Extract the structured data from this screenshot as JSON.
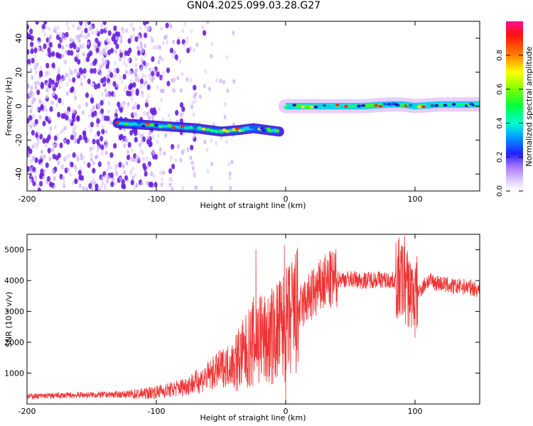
{
  "title": "GN04.2025.099.03.28.G27",
  "chart_data": [
    {
      "type": "heatmap",
      "xlabel": "Height of straight line (km)",
      "ylabel": "Frequency (Hz)",
      "xlim": [
        -200,
        150
      ],
      "ylim": [
        -50,
        50
      ],
      "xticks": [
        -200,
        -100,
        0,
        100
      ],
      "yticks": [
        -40,
        -20,
        0,
        20,
        40
      ],
      "colorbar": {
        "label": "Normalized spectral amplitude",
        "range": [
          0,
          1
        ],
        "ticks": [
          "0.0",
          "0.2",
          "0.4",
          "0.6",
          "0.8"
        ]
      },
      "ridges": [
        {
          "x": [
            -130,
            -110,
            -90,
            -70,
            -50,
            -35,
            -25,
            -15,
            -5
          ],
          "y": [
            -10,
            -11,
            -12,
            -13,
            -15,
            -14,
            -13,
            -14,
            -15
          ]
        },
        {
          "x": [
            0,
            20,
            40,
            60,
            80,
            90,
            100,
            120,
            140,
            150
          ],
          "y": [
            0,
            0,
            0,
            0,
            1,
            1,
            0,
            1,
            1,
            1
          ]
        }
      ],
      "noise_region_x": [
        -200,
        -70
      ]
    },
    {
      "type": "line",
      "xlabel": "Height of straight line (km)",
      "ylabel": "SNR (10 * v/v)",
      "xlim": [
        -200,
        150
      ],
      "ylim": [
        0,
        5500
      ],
      "xticks": [
        -200,
        -100,
        0,
        100
      ],
      "yticks": [
        1000,
        2000,
        3000,
        4000,
        5000
      ],
      "color": "#ee3333",
      "series": [
        {
          "x": [
            -200,
            -180,
            -160,
            -140,
            -120,
            -110,
            -100,
            -90,
            -80,
            -70,
            -60,
            -50,
            -40,
            -35,
            -30,
            -25,
            -20,
            -15,
            -10,
            -5,
            0,
            5,
            10,
            15,
            20,
            25,
            30,
            35,
            40,
            50,
            60,
            70,
            80,
            90,
            95,
            100,
            110,
            120,
            130,
            140,
            150
          ],
          "values": [
            250,
            270,
            290,
            300,
            320,
            330,
            400,
            450,
            550,
            700,
            900,
            1150,
            1350,
            1500,
            1700,
            2000,
            2200,
            2000,
            2200,
            2400,
            2500,
            2800,
            3000,
            3300,
            3500,
            3700,
            3900,
            4000,
            4050,
            4050,
            4000,
            4050,
            4000,
            4000,
            3700,
            3500,
            4000,
            3900,
            3800,
            3800,
            3700
          ],
          "spikes": [
            {
              "x": -23,
              "value": 5000
            },
            {
              "x": -1,
              "value": 5150
            },
            {
              "x": 0,
              "value": 50
            },
            {
              "x": 92,
              "value": 5450
            },
            {
              "x": 100,
              "value": 2150
            }
          ]
        }
      ]
    }
  ]
}
